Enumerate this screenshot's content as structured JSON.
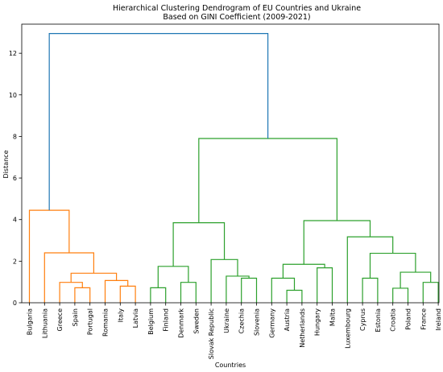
{
  "chart_data": {
    "type": "dendrogram",
    "title": "Hierarchical Clustering Dendrogram of EU Countries and Ukraine",
    "subtitle": "Based on GINI Coefficient (2009-2021)",
    "xlabel": "Countries",
    "ylabel": "Distance",
    "ylim": [
      0,
      13.4
    ],
    "yticks": [
      0,
      2,
      4,
      6,
      8,
      10,
      12
    ],
    "grid": false,
    "leaves": [
      "Bulgaria",
      "Lithuania",
      "Greece",
      "Spain",
      "Portugal",
      "Romania",
      "Italy",
      "Latvia",
      "Belgium",
      "Finland",
      "Denmark",
      "Sweden",
      "Slovak Republic",
      "Ukraine",
      "Czechia",
      "Slovenia",
      "Germany",
      "Austria",
      "Netherlands",
      "Hungary",
      "Malta",
      "Luxembourg",
      "Cyprus",
      "Estonia",
      "Croatia",
      "Poland",
      "France",
      "Ireland"
    ],
    "colors": {
      "cluster_orange": "#ff7f0e",
      "cluster_green": "#2ca02c",
      "root_blue": "#1f77b4"
    },
    "merges": [
      {
        "a": "L:3",
        "b": "L:4",
        "height": 0.72,
        "color": "cluster_orange"
      },
      {
        "a": "L:2",
        "b": "M:0",
        "height": 0.98,
        "color": "cluster_orange"
      },
      {
        "a": "L:6",
        "b": "L:7",
        "height": 0.8,
        "color": "cluster_orange"
      },
      {
        "a": "L:5",
        "b": "M:2",
        "height": 1.07,
        "color": "cluster_orange"
      },
      {
        "a": "M:1",
        "b": "M:3",
        "height": 1.42,
        "color": "cluster_orange"
      },
      {
        "a": "L:1",
        "b": "M:4",
        "height": 2.4,
        "color": "cluster_orange"
      },
      {
        "a": "L:0",
        "b": "M:5",
        "height": 4.45,
        "color": "cluster_orange"
      },
      {
        "a": "L:8",
        "b": "L:9",
        "height": 0.72,
        "color": "cluster_green"
      },
      {
        "a": "L:10",
        "b": "L:11",
        "height": 0.98,
        "color": "cluster_green"
      },
      {
        "a": "M:7",
        "b": "M:8",
        "height": 1.75,
        "color": "cluster_green"
      },
      {
        "a": "L:14",
        "b": "L:15",
        "height": 1.18,
        "color": "cluster_green"
      },
      {
        "a": "L:13",
        "b": "M:10",
        "height": 1.28,
        "color": "cluster_green"
      },
      {
        "a": "L:12",
        "b": "M:11",
        "height": 2.08,
        "color": "cluster_green"
      },
      {
        "a": "M:9",
        "b": "M:12",
        "height": 3.85,
        "color": "cluster_green"
      },
      {
        "a": "L:17",
        "b": "L:18",
        "height": 0.6,
        "color": "cluster_green"
      },
      {
        "a": "L:16",
        "b": "M:14",
        "height": 1.18,
        "color": "cluster_green"
      },
      {
        "a": "L:19",
        "b": "L:20",
        "height": 1.68,
        "color": "cluster_green"
      },
      {
        "a": "M:15",
        "b": "M:16",
        "height": 1.85,
        "color": "cluster_green"
      },
      {
        "a": "L:22",
        "b": "L:23",
        "height": 1.18,
        "color": "cluster_green"
      },
      {
        "a": "L:24",
        "b": "L:25",
        "height": 0.7,
        "color": "cluster_green"
      },
      {
        "a": "L:26",
        "b": "L:27",
        "height": 0.98,
        "color": "cluster_green"
      },
      {
        "a": "M:19",
        "b": "M:20",
        "height": 1.47,
        "color": "cluster_green"
      },
      {
        "a": "M:18",
        "b": "M:21",
        "height": 2.38,
        "color": "cluster_green"
      },
      {
        "a": "L:21",
        "b": "M:22",
        "height": 3.17,
        "color": "cluster_green"
      },
      {
        "a": "M:17",
        "b": "M:23",
        "height": 3.95,
        "color": "cluster_green"
      },
      {
        "a": "M:13",
        "b": "M:24",
        "height": 7.9,
        "color": "cluster_green"
      },
      {
        "a": "M:6",
        "b": "M:25",
        "height": 12.95,
        "color": "root_blue"
      }
    ]
  }
}
